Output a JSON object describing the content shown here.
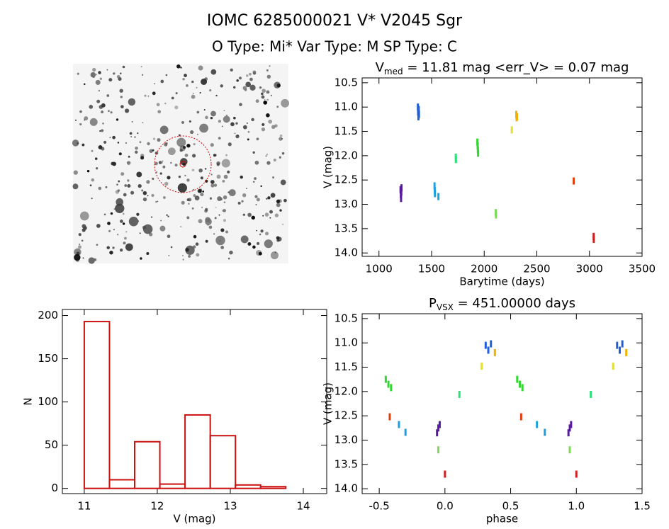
{
  "header": {
    "title": "IOMC 6285000021    V* V2045 Sgr",
    "subtitle": "O Type: Mi*   Var Type: M   SP Type: C"
  },
  "chart_data": [
    {
      "type": "scatter",
      "title": [
        "V",
        "med",
        " = 11.81 mag <err_V> = 0.07 mag"
      ],
      "x_label": "Barytime (days)",
      "y_label": "V (mag)",
      "xlim": [
        840,
        3500
      ],
      "xticks": [
        1000,
        1500,
        2000,
        2500,
        3000,
        3500
      ],
      "ylim": [
        14.07,
        10.4
      ],
      "yticks": [
        10.5,
        {
          "value": 11,
          "label": "11.0"
        },
        11.5,
        {
          "value": 12,
          "label": "12.0"
        },
        12.5,
        {
          "value": 13,
          "label": "13.0"
        },
        13.5,
        {
          "value": 14,
          "label": "14.0"
        }
      ],
      "series": [
        {
          "color": "#5a1aa0",
          "x": [
            1205,
            1208,
            1210,
            1212,
            1214
          ],
          "values": [
            12.7,
            12.8,
            12.88,
            12.75,
            12.66
          ]
        },
        {
          "color": "#1f5fd8",
          "x": [
            1370,
            1372,
            1375,
            1378,
            1380
          ],
          "values": [
            11.0,
            11.1,
            11.2,
            11.05,
            11.15
          ]
        },
        {
          "color": "#1ea0e0",
          "x": [
            1528,
            1530,
            1532,
            1565
          ],
          "values": [
            12.62,
            12.72,
            12.78,
            12.84
          ]
        },
        {
          "color": "#2ee07a",
          "x": [
            1730,
            1731
          ],
          "values": [
            12.03,
            12.08
          ]
        },
        {
          "color": "#33d633",
          "x": [
            1935,
            1938,
            1940,
            1942
          ],
          "values": [
            11.72,
            11.8,
            11.88,
            11.95
          ]
        },
        {
          "color": "#7ed957",
          "x": [
            2110,
            2112
          ],
          "values": [
            13.17,
            13.22
          ]
        },
        {
          "color": "#e0e030",
          "x": [
            2262
          ],
          "values": [
            11.47
          ]
        },
        {
          "color": "#f0b000",
          "x": [
            2305,
            2308,
            2312
          ],
          "values": [
            11.15,
            11.22,
            11.2
          ]
        },
        {
          "color": "#e04010",
          "x": [
            2850
          ],
          "values": [
            12.52
          ]
        },
        {
          "color": "#d02020",
          "x": [
            3040,
            3041
          ],
          "values": [
            13.66,
            13.72
          ]
        }
      ]
    },
    {
      "type": "histogram",
      "x_label": "V (mag)",
      "y_label": "N",
      "color": "#cc1111",
      "bins": [
        11.0,
        11.345,
        11.69,
        12.035,
        12.38,
        12.725,
        13.07,
        13.415,
        13.76
      ],
      "values": [
        193,
        10,
        54,
        5,
        85,
        61,
        4,
        2
      ],
      "xlim": [
        10.7,
        14.32
      ],
      "xticks": [
        11,
        12,
        13,
        14
      ],
      "ylim": [
        -6,
        207
      ],
      "yticks": [
        0,
        50,
        100,
        150,
        200
      ]
    },
    {
      "type": "scatter",
      "title": [
        "P",
        "VSX",
        " = 451.00000 days"
      ],
      "x_label": "phase",
      "y_label": "V (mag)",
      "xlim": [
        -0.63,
        1.5
      ],
      "xticks": [
        -0.5,
        {
          "value": 0,
          "label": "0.0"
        },
        0.5,
        {
          "value": 1,
          "label": "1.0"
        },
        1.5
      ],
      "ylim": [
        14.1,
        10.4
      ],
      "yticks": [
        10.5,
        {
          "value": 11,
          "label": "11.0"
        },
        11.5,
        {
          "value": 12,
          "label": "12.0"
        },
        12.5,
        {
          "value": 13,
          "label": "13.0"
        },
        13.5,
        {
          "value": 14,
          "label": "14.0"
        }
      ],
      "series": [
        {
          "color": "#5a1aa0",
          "x": [
            -0.06,
            -0.05,
            -0.04,
            0.94,
            0.95,
            0.96
          ],
          "values": [
            12.85,
            12.75,
            12.68,
            12.85,
            12.75,
            12.68
          ]
        },
        {
          "color": "#1f5fd8",
          "x": [
            0.31,
            0.33,
            0.35,
            1.31,
            1.33,
            1.35
          ],
          "values": [
            11.05,
            11.15,
            11.02,
            11.05,
            11.15,
            11.02
          ]
        },
        {
          "color": "#1ea0e0",
          "x": [
            -0.35,
            -0.3,
            0.7,
            0.76
          ],
          "values": [
            12.68,
            12.84,
            12.68,
            12.84
          ]
        },
        {
          "color": "#2ee07a",
          "x": [
            0.11,
            1.11
          ],
          "values": [
            12.06,
            12.06
          ]
        },
        {
          "color": "#33d633",
          "x": [
            -0.45,
            -0.43,
            -0.41,
            0.55,
            0.57,
            0.59
          ],
          "values": [
            11.75,
            11.85,
            11.92,
            11.75,
            11.85,
            11.92
          ]
        },
        {
          "color": "#7ed957",
          "x": [
            -0.05,
            0.95
          ],
          "values": [
            13.2,
            13.2
          ]
        },
        {
          "color": "#e0e030",
          "x": [
            0.28,
            1.28
          ],
          "values": [
            11.48,
            11.48
          ]
        },
        {
          "color": "#f0b000",
          "x": [
            0.38,
            1.38
          ],
          "values": [
            11.2,
            11.2
          ]
        },
        {
          "color": "#e04010",
          "x": [
            -0.42,
            0.58
          ],
          "values": [
            12.52,
            12.52
          ]
        },
        {
          "color": "#d02020",
          "x": [
            0.0,
            1.0
          ],
          "values": [
            13.7,
            13.7
          ]
        }
      ]
    }
  ]
}
